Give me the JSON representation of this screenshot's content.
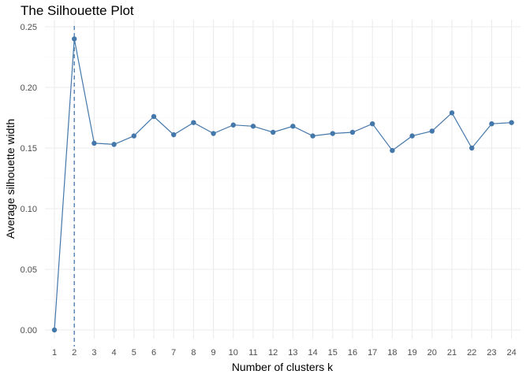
{
  "chart_data": {
    "type": "line",
    "title": "The Silhouette Plot",
    "xlabel": "Number of clusters k",
    "ylabel": "Average silhouette width",
    "x": [
      1,
      2,
      3,
      4,
      5,
      6,
      7,
      8,
      9,
      10,
      11,
      12,
      13,
      14,
      15,
      16,
      17,
      18,
      19,
      20,
      21,
      22,
      23,
      24
    ],
    "series": [
      {
        "values": [
          0.0,
          0.24,
          0.154,
          0.153,
          0.16,
          0.176,
          0.161,
          0.171,
          0.162,
          0.169,
          0.168,
          0.163,
          0.168,
          0.16,
          0.162,
          0.163,
          0.17,
          0.148,
          0.16,
          0.164,
          0.179,
          0.15,
          0.17,
          0.171
        ],
        "color": "#4477aa"
      }
    ],
    "ylim": [
      0,
      0.25
    ],
    "yticks": [
      "0.00",
      "0.05",
      "0.10",
      "0.15",
      "0.20",
      "0.25"
    ],
    "ytick_values": [
      0,
      0.05,
      0.1,
      0.15,
      0.2,
      0.25
    ],
    "reference_line": {
      "x": 2,
      "style": "dashed",
      "color": "#4477aa"
    },
    "grid": true,
    "legend": "none"
  }
}
